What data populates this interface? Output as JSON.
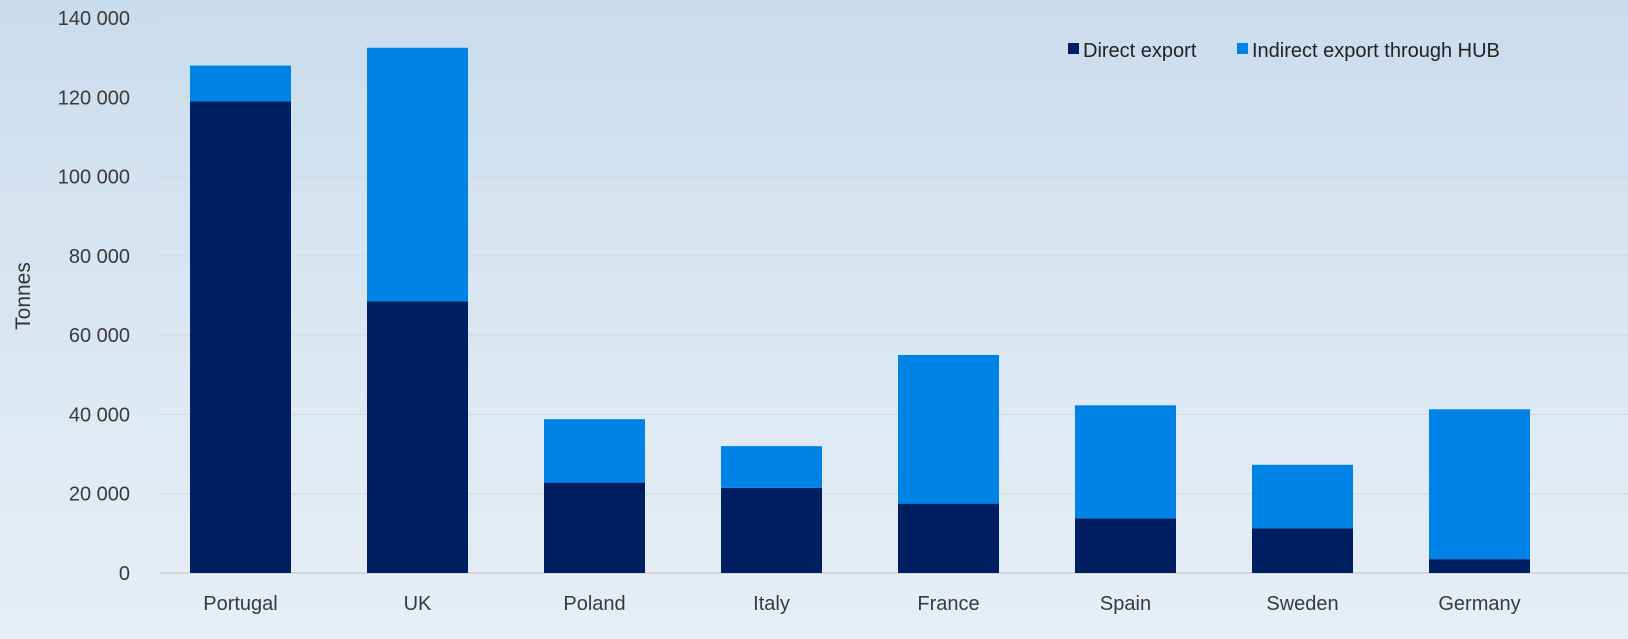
{
  "chart_data": {
    "type": "bar",
    "stacked": true,
    "ylabel": "Tonnes",
    "xlabel": "",
    "ylim": [
      0,
      140000
    ],
    "yticks": [
      0,
      20000,
      40000,
      60000,
      80000,
      100000,
      120000,
      140000
    ],
    "ytick_labels": [
      "0",
      "20 000",
      "40 000",
      "60 000",
      "80 000",
      "100 000",
      "120 000",
      "140 000"
    ],
    "grid": true,
    "legend_position": "top-right",
    "categories": [
      "Portugal",
      "UK",
      "Poland",
      "Italy",
      "France",
      "Spain",
      "Sweden",
      "Germany"
    ],
    "series": [
      {
        "name": "Direct export",
        "color": "#001f63",
        "values": [
          119000,
          68500,
          22800,
          21500,
          17500,
          13800,
          11300,
          3500
        ]
      },
      {
        "name": "Indirect export through HUB",
        "color": "#0083e6",
        "values": [
          9000,
          64000,
          16000,
          10500,
          37500,
          28500,
          16000,
          37800
        ]
      }
    ]
  }
}
